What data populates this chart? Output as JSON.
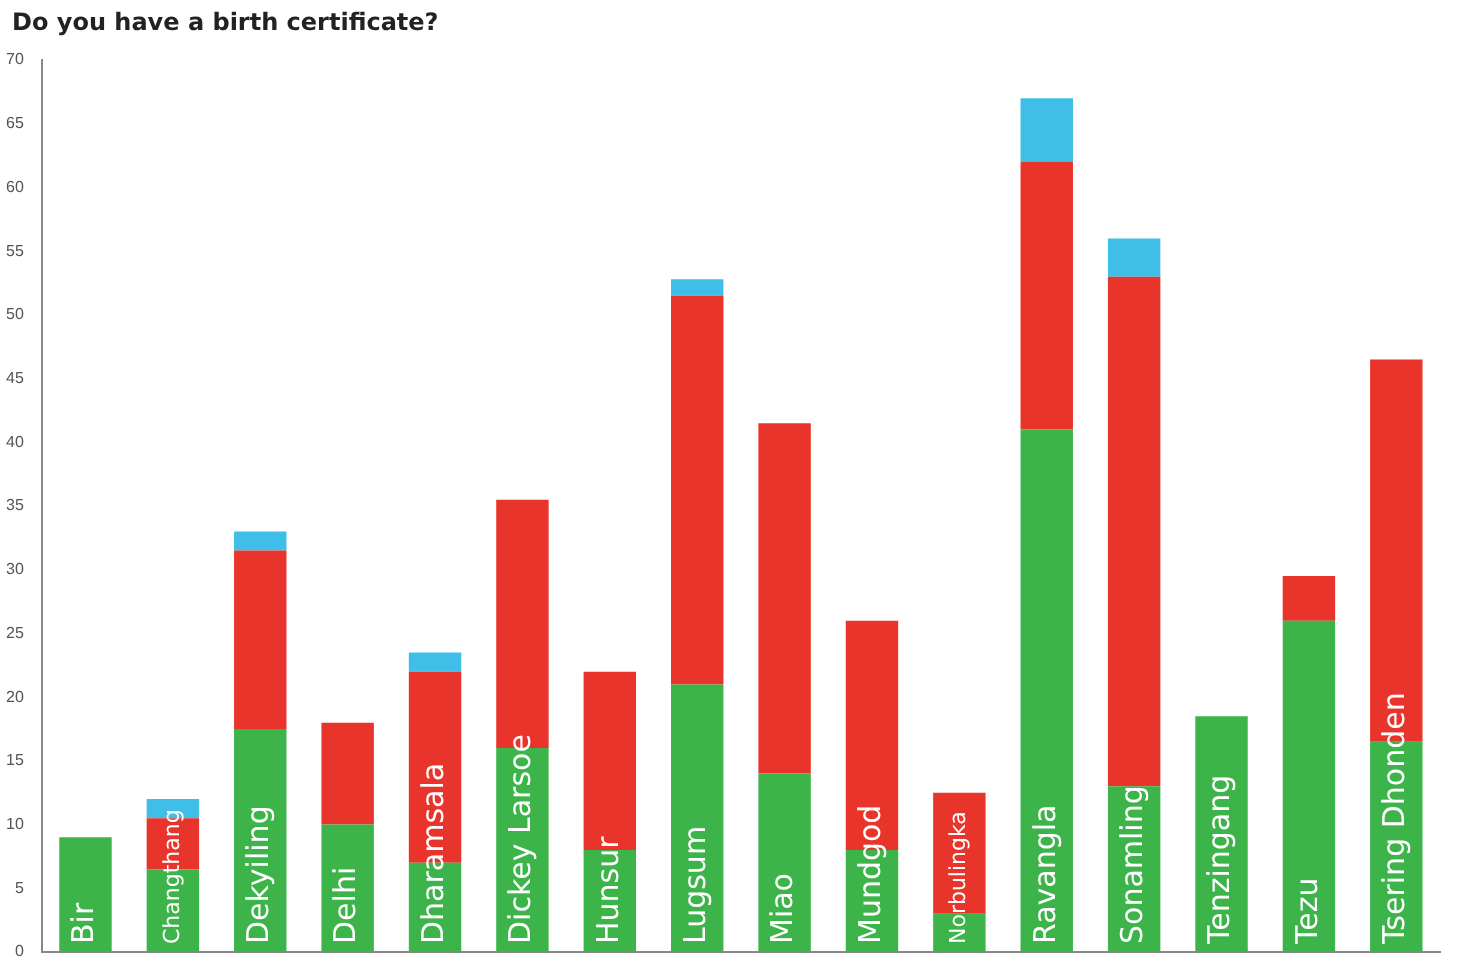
{
  "chart_data": {
    "type": "bar",
    "title": "Do you have a birth certificate?",
    "categories": [
      "Bir",
      "Changthang",
      "Dekyiling",
      "Delhi",
      "Dharamsala",
      "Dickey Larsoe",
      "Hunsur",
      "Lugsum",
      "Miao",
      "Mundgod",
      "Norbulingka",
      "Ravangla",
      "Sonamling",
      "Tenzingang",
      "Tezu",
      "Tsering Dhonden"
    ],
    "stacked": true,
    "series": [
      {
        "color": "#3cb44a",
        "values": [
          9,
          6.5,
          17.5,
          10,
          7,
          16,
          8,
          21,
          14,
          8,
          3,
          41,
          13,
          18.5,
          26,
          16.5
        ]
      },
      {
        "color": "#e8342a",
        "values": [
          null,
          4,
          14,
          8,
          15,
          19.5,
          14,
          30.5,
          27.5,
          18,
          9.5,
          21,
          40,
          null,
          3.5,
          30
        ]
      },
      {
        "color": "#3fbfe8",
        "values": [
          null,
          1.5,
          1.5,
          null,
          1.5,
          null,
          null,
          1.3,
          null,
          null,
          null,
          5,
          3,
          null,
          null,
          null
        ]
      }
    ],
    "ylim": [
      0,
      70
    ],
    "yticks": [
      0,
      5,
      10,
      15,
      20,
      25,
      30,
      35,
      40,
      45,
      50,
      55,
      60,
      65,
      70
    ],
    "grid": false,
    "legend": false
  }
}
